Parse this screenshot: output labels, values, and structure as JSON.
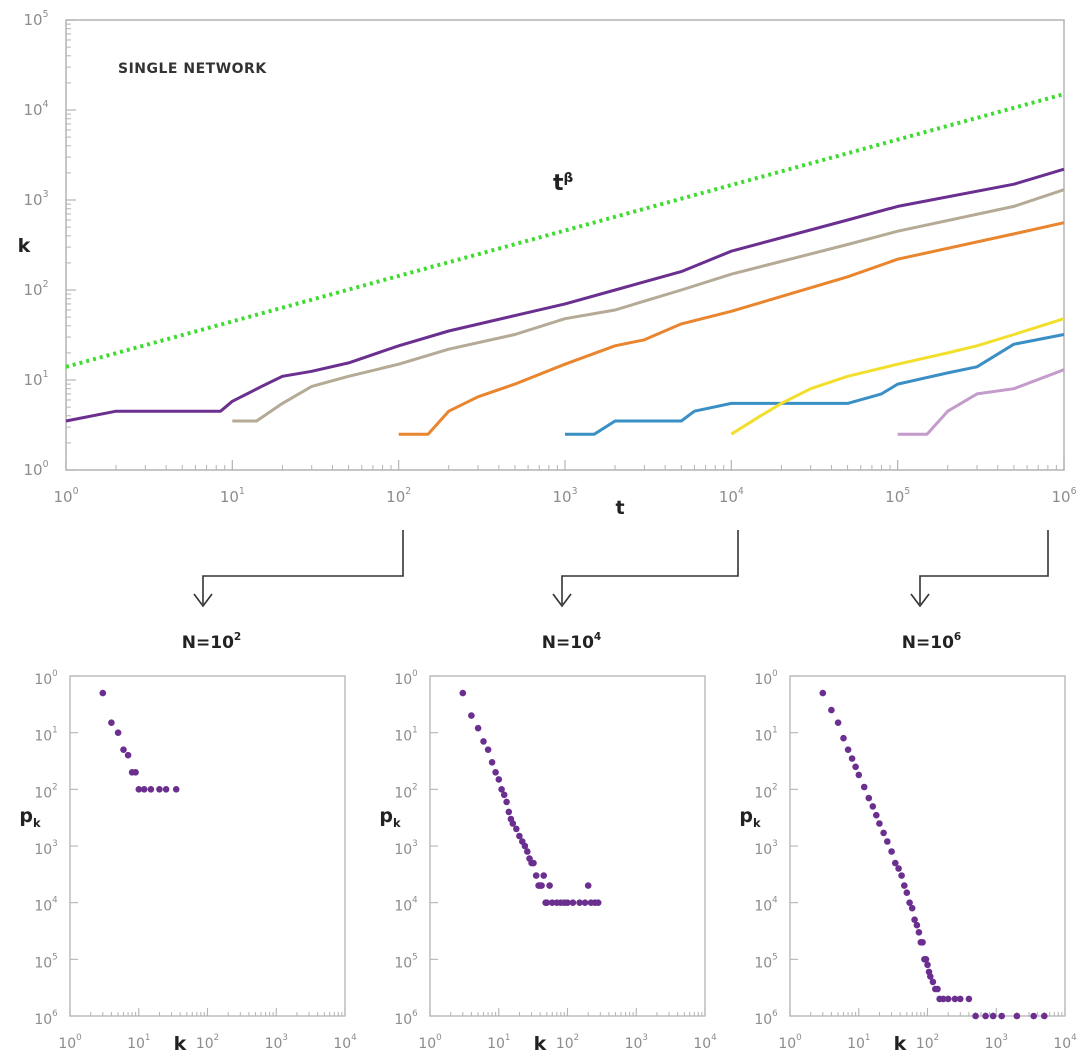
{
  "chart_data": [
    {
      "type": "line",
      "title": "",
      "annotation": "SINGLE NETWORK",
      "xlabel": "t",
      "ylabel": "k",
      "xscale": "log",
      "yscale": "log",
      "xlim": [
        1,
        1000000
      ],
      "ylim": [
        1,
        100000
      ],
      "x_ticks": [
        "10",
        "10",
        "10",
        "10",
        "10",
        "10",
        "10"
      ],
      "x_tick_exponents": [
        "0",
        "1",
        "2",
        "3",
        "4",
        "5",
        "6"
      ],
      "y_ticks": [
        "10",
        "10",
        "10",
        "10",
        "10",
        "10"
      ],
      "y_tick_exponents": [
        "0",
        "1",
        "2",
        "3",
        "4",
        "5"
      ],
      "grid": false,
      "legend": "none",
      "reference_line": {
        "label_base": "t",
        "label_exponent": "β",
        "style": "dotted",
        "color": "#3ddc2f",
        "x": [
          1,
          1000000
        ],
        "y": [
          14,
          15000
        ]
      },
      "series": [
        {
          "color": "#6a2f8f",
          "x": [
            1,
            2,
            8.5,
            10,
            15,
            20,
            30,
            50,
            100,
            200,
            500,
            1000,
            2000,
            5000,
            10000,
            50000,
            100000,
            500000,
            1000000
          ],
          "y": [
            3.5,
            4.5,
            4.5,
            5.8,
            8.5,
            11,
            12.5,
            15.5,
            24,
            35,
            52,
            70,
            100,
            160,
            270,
            600,
            850,
            1500,
            2200
          ]
        },
        {
          "color": "#b5aa95",
          "x": [
            10,
            14,
            20,
            30,
            50,
            100,
            200,
            500,
            1000,
            2000,
            5000,
            10000,
            50000,
            100000,
            500000,
            1000000
          ],
          "y": [
            3.5,
            3.5,
            5.5,
            8.5,
            11,
            15,
            22,
            32,
            48,
            60,
            100,
            150,
            320,
            450,
            850,
            1300
          ]
        },
        {
          "color": "#e8852e",
          "x": [
            100,
            150,
            200,
            300,
            500,
            1000,
            2000,
            3000,
            5000,
            10000,
            50000,
            100000,
            500000,
            1000000
          ],
          "y": [
            2.5,
            2.5,
            4.5,
            6.5,
            9,
            15,
            24,
            28,
            42,
            58,
            140,
            220,
            420,
            560
          ]
        },
        {
          "color": "#3a8fc4",
          "x": [
            1000,
            1500,
            2000,
            5000,
            6000,
            10000,
            20000,
            50000,
            80000,
            100000,
            200000,
            300000,
            500000,
            1000000
          ],
          "y": [
            2.5,
            2.5,
            3.5,
            3.5,
            4.5,
            5.5,
            5.5,
            5.5,
            7,
            9,
            12,
            14,
            25,
            32
          ]
        },
        {
          "color": "#f2df2b",
          "x": [
            10000,
            15000,
            20000,
            30000,
            50000,
            100000,
            200000,
            300000,
            500000,
            1000000
          ],
          "y": [
            2.5,
            4,
            5.5,
            8,
            11,
            15,
            20,
            24,
            32,
            48
          ]
        },
        {
          "color": "#c49ccb",
          "x": [
            100000,
            150000,
            200000,
            300000,
            500000,
            1000000
          ],
          "y": [
            2.5,
            2.5,
            4.5,
            7,
            8,
            13
          ]
        }
      ]
    },
    {
      "type": "scatter",
      "title": "N=10",
      "title_exponent": "2",
      "xlabel": "k",
      "ylabel": "p",
      "ylabel_sub": "k",
      "xscale": "log",
      "yscale": "log",
      "xlim": [
        1,
        10000
      ],
      "ylim": [
        1e-06,
        1
      ],
      "x_ticks": [
        "10",
        "10",
        "10",
        "10",
        "10"
      ],
      "x_tick_exponents": [
        "0",
        "1",
        "2",
        "3",
        "4"
      ],
      "y_ticks": [
        "10",
        "10",
        "10",
        "10",
        "10",
        "10",
        "10"
      ],
      "y_tick_exponents": [
        "0",
        "1",
        "2",
        "3",
        "4",
        "5",
        "6"
      ],
      "color": "#6a2f8f",
      "x": [
        3,
        4,
        5,
        6,
        7,
        8,
        9,
        10,
        12,
        15,
        20,
        25,
        35
      ],
      "y": [
        0.5,
        0.15,
        0.1,
        0.05,
        0.04,
        0.02,
        0.02,
        0.01,
        0.01,
        0.01,
        0.01,
        0.01,
        0.01
      ]
    },
    {
      "type": "scatter",
      "title": "N=10",
      "title_exponent": "4",
      "xlabel": "k",
      "ylabel": "p",
      "ylabel_sub": "k",
      "xscale": "log",
      "yscale": "log",
      "xlim": [
        1,
        10000
      ],
      "ylim": [
        1e-06,
        1
      ],
      "x_ticks": [
        "10",
        "10",
        "10",
        "10",
        "10"
      ],
      "x_tick_exponents": [
        "0",
        "1",
        "2",
        "3",
        "4"
      ],
      "y_ticks": [
        "10",
        "10",
        "10",
        "10",
        "10",
        "10",
        "10"
      ],
      "y_tick_exponents": [
        "0",
        "1",
        "2",
        "3",
        "4",
        "5",
        "6"
      ],
      "color": "#6a2f8f",
      "x": [
        3,
        4,
        5,
        6,
        7,
        8,
        9,
        10,
        11,
        12,
        13,
        14,
        15,
        16,
        18,
        20,
        22,
        24,
        26,
        28,
        30,
        32,
        35,
        38,
        40,
        42,
        45,
        48,
        50,
        55,
        60,
        70,
        80,
        90,
        100,
        120,
        150,
        180,
        200,
        220,
        250,
        280
      ],
      "y": [
        0.5,
        0.2,
        0.12,
        0.07,
        0.05,
        0.03,
        0.02,
        0.015,
        0.01,
        0.008,
        0.006,
        0.004,
        0.003,
        0.0025,
        0.002,
        0.0015,
        0.0012,
        0.001,
        0.0008,
        0.0006,
        0.0005,
        0.0005,
        0.0003,
        0.0002,
        0.0002,
        0.0002,
        0.0003,
        0.0001,
        0.0001,
        0.0002,
        0.0001,
        0.0001,
        0.0001,
        0.0001,
        0.0001,
        0.0001,
        0.0001,
        0.0001,
        0.0002,
        0.0001,
        0.0001,
        0.0001
      ]
    },
    {
      "type": "scatter",
      "title": "N=10",
      "title_exponent": "6",
      "xlabel": "k",
      "ylabel": "p",
      "ylabel_sub": "k",
      "xscale": "log",
      "yscale": "log",
      "xlim": [
        1,
        10000
      ],
      "ylim": [
        1e-06,
        1
      ],
      "x_ticks": [
        "10",
        "10",
        "10",
        "10",
        "10"
      ],
      "x_tick_exponents": [
        "0",
        "1",
        "2",
        "3",
        "4"
      ],
      "y_ticks": [
        "10",
        "10",
        "10",
        "10",
        "10",
        "10",
        "10"
      ],
      "y_tick_exponents": [
        "0",
        "1",
        "2",
        "3",
        "4",
        "5",
        "6"
      ],
      "color": "#6a2f8f",
      "x": [
        3,
        4,
        5,
        6,
        7,
        8,
        9,
        10,
        12,
        14,
        16,
        18,
        20,
        23,
        26,
        30,
        34,
        38,
        42,
        46,
        50,
        55,
        60,
        65,
        70,
        75,
        80,
        85,
        90,
        95,
        100,
        105,
        110,
        120,
        130,
        140,
        150,
        170,
        200,
        250,
        300,
        400,
        500,
        700,
        900,
        1200,
        2000,
        3500,
        5000
      ],
      "y": [
        0.5,
        0.25,
        0.15,
        0.08,
        0.05,
        0.035,
        0.025,
        0.018,
        0.011,
        0.007,
        0.005,
        0.0035,
        0.0025,
        0.0017,
        0.0012,
        0.0008,
        0.0005,
        0.0004,
        0.0003,
        0.0002,
        0.00015,
        0.0001,
        8e-05,
        5e-05,
        4e-05,
        3e-05,
        2e-05,
        2e-05,
        1e-05,
        1e-05,
        8e-06,
        6e-06,
        5e-06,
        4e-06,
        3e-06,
        3e-06,
        2e-06,
        2e-06,
        2e-06,
        2e-06,
        2e-06,
        2e-06,
        1e-06,
        1e-06,
        1e-06,
        1e-06,
        1e-06,
        1e-06,
        1e-06
      ]
    }
  ],
  "colors": {
    "axis": "#b3b3b3",
    "tick_text": "#8c8c8c",
    "arrow": "#333333"
  }
}
